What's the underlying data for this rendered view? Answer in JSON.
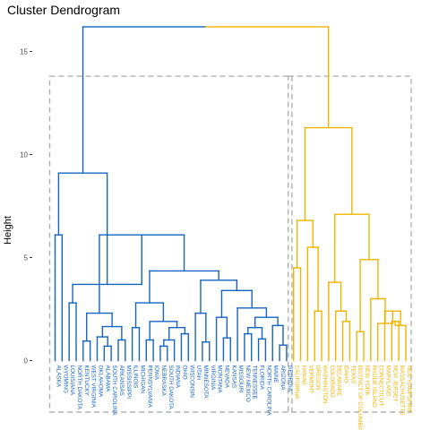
{
  "chart_data": {
    "type": "dendrogram",
    "title": "Cluster Dendrogram",
    "xlabel": "",
    "ylabel": "Height",
    "ylim": [
      -2.5,
      17.5
    ],
    "yticks": [
      0,
      5,
      10,
      15
    ],
    "grid": false,
    "legend": "none",
    "colors": {
      "cluster_1": "#1565C0",
      "cluster_2": "#F0B400",
      "box": "#B0B0B0",
      "axis_text": "#4d4d4d"
    },
    "leaves": [
      {
        "label": "ALASKA",
        "cluster": 1
      },
      {
        "label": "WYOMING",
        "cluster": 1
      },
      {
        "label": "LOUISIANA",
        "cluster": 1
      },
      {
        "label": "NORTH DAKOTA",
        "cluster": 1
      },
      {
        "label": "KENTUCKY",
        "cluster": 1
      },
      {
        "label": "WEST VIRGINIA",
        "cluster": 1
      },
      {
        "label": "OKLAHOMA",
        "cluster": 1
      },
      {
        "label": "ALABAMA",
        "cluster": 1
      },
      {
        "label": "SOUTH CAROLINA",
        "cluster": 1
      },
      {
        "label": "ARKANSAS",
        "cluster": 1
      },
      {
        "label": "MISSISSIPPI",
        "cluster": 1
      },
      {
        "label": "ILLINOIS",
        "cluster": 1
      },
      {
        "label": "MICHIGAN",
        "cluster": 1
      },
      {
        "label": "PENNSYLVANIA",
        "cluster": 1
      },
      {
        "label": "IOWA",
        "cluster": 1
      },
      {
        "label": "NEBRASKA",
        "cluster": 1
      },
      {
        "label": "SOUTH DAKOTA",
        "cluster": 1
      },
      {
        "label": "INDIANA",
        "cluster": 1
      },
      {
        "label": "OHIO",
        "cluster": 1
      },
      {
        "label": "WISCONSIN",
        "cluster": 1
      },
      {
        "label": "UTAH",
        "cluster": 1
      },
      {
        "label": "MINNESOTA",
        "cluster": 1
      },
      {
        "label": "VIRGINIA",
        "cluster": 1
      },
      {
        "label": "MONTANA",
        "cluster": 1
      },
      {
        "label": "NEVADA",
        "cluster": 1
      },
      {
        "label": "KANSAS",
        "cluster": 1
      },
      {
        "label": "MISSOURI",
        "cluster": 1
      },
      {
        "label": "NEW MEXICO",
        "cluster": 1
      },
      {
        "label": "TENNESSEE",
        "cluster": 1
      },
      {
        "label": "FLORIDA",
        "cluster": 1
      },
      {
        "label": "NORTH CAROLINA",
        "cluster": 1
      },
      {
        "label": "MAINE",
        "cluster": 1
      },
      {
        "label": "ARIZONA",
        "cluster": 1
      },
      {
        "label": "GEORGIA",
        "cluster": 1
      },
      {
        "label": "CALIFORNIA",
        "cluster": 2
      },
      {
        "label": "HAWAII",
        "cluster": 2
      },
      {
        "label": "VERMONT",
        "cluster": 2
      },
      {
        "label": "OREGON",
        "cluster": 2
      },
      {
        "label": "WASHINGTON",
        "cluster": 2
      },
      {
        "label": "COLORADO",
        "cluster": 2
      },
      {
        "label": "DELAWARE",
        "cluster": 2
      },
      {
        "label": "IDAHO",
        "cluster": 2
      },
      {
        "label": "TEXAS",
        "cluster": 2
      },
      {
        "label": "DISTRICT OF COLUMBIA",
        "cluster": 2
      },
      {
        "label": "NEW YORK",
        "cluster": 2
      },
      {
        "label": "RHODE ISLAND",
        "cluster": 2
      },
      {
        "label": "CONNECTICUT",
        "cluster": 2
      },
      {
        "label": "MARYLAND",
        "cluster": 2
      },
      {
        "label": "NEW JERSEY",
        "cluster": 2
      },
      {
        "label": "MASSACHUSETTS",
        "cluster": 2
      },
      {
        "label": "NEW HAMPSHIRE",
        "cluster": 2
      }
    ],
    "merges": [
      {
        "left": "ALASKA",
        "right": "WYOMING",
        "height": 6.1
      },
      {
        "left": "LOUISIANA",
        "right": "NORTH DAKOTA",
        "height": 2.8
      },
      {
        "left": "KENTUCKY",
        "right": "WEST VIRGINIA",
        "height": 0.95
      },
      {
        "left": "ALABAMA",
        "right": "SOUTH CAROLINA",
        "height": 0.7
      },
      {
        "left": "ARKANSAS",
        "right": "MISSISSIPPI",
        "height": 1.0
      },
      {
        "left": "OKLAHOMA",
        "right": "ALABAMA-SOUTH CAROLINA",
        "height": 1.15
      },
      {
        "left": "OKLAHOMA group",
        "right": "ARKANSAS-MISSISSIPPI",
        "height": 1.65
      },
      {
        "left": "KENTUCKY-WEST VIRGINIA",
        "right": "OKLAHOMA group",
        "height": 2.3
      },
      {
        "left": "ILLINOIS",
        "right": "MICHIGAN",
        "height": 1.6
      },
      {
        "left": "PENNSYLVANIA",
        "right": "IOWA",
        "height": 1.0
      },
      {
        "left": "NEBRASKA",
        "right": "SOUTH DAKOTA",
        "height": 0.7
      },
      {
        "left": "NEBRASKA-SOUTH DAKOTA",
        "right": "INDIANA",
        "height": 1.0
      },
      {
        "left": "OHIO",
        "right": "WISCONSIN",
        "height": 1.3
      },
      {
        "left": "NEBRASKA group",
        "right": "OHIO-WISCONSIN",
        "height": 1.6
      },
      {
        "left": "PENNSYLVANIA-IOWA",
        "right": "NEBRASKA group",
        "height": 1.9
      },
      {
        "left": "ILLINOIS-MICHIGAN",
        "right": "PENNSYLVANIA group",
        "height": 2.8
      },
      {
        "left": "MINNESOTA",
        "right": "VIRGINIA",
        "height": 0.9
      },
      {
        "left": "UTAH",
        "right": "MINNESOTA-VIRGINIA",
        "height": 2.3
      },
      {
        "left": "NEVADA",
        "right": "KANSAS",
        "height": 1.1
      },
      {
        "left": "MONTANA",
        "right": "NEVADA-KANSAS",
        "height": 2.1
      },
      {
        "left": "NEW MEXICO",
        "right": "TENNESSEE",
        "height": 1.3
      },
      {
        "left": "FLORIDA",
        "right": "NORTH CAROLINA",
        "height": 1.05
      },
      {
        "left": "NEW MEXICO-TENNESSEE",
        "right": "FLORIDA-NORTH CAROLINA",
        "height": 1.6
      },
      {
        "left": "ARIZONA",
        "right": "GEORGIA",
        "height": 0.75
      },
      {
        "left": "MAINE",
        "right": "ARIZONA-GEORGIA",
        "height": 1.7
      },
      {
        "left": "NEW MEXICO group",
        "right": "MAINE group",
        "height": 2.1
      },
      {
        "left": "MISSOURI",
        "right": "NEW MEXICO group",
        "height": 2.55
      },
      {
        "left": "MONTANA group",
        "right": "MISSOURI group",
        "height": 3.4
      },
      {
        "left": "UTAH group",
        "right": "MONTANA group",
        "height": 3.9
      },
      {
        "left": "ILLINOIS group",
        "right": "UTAH group",
        "height": 4.35
      },
      {
        "left": "KENTUCKY group",
        "right": "ILLINOIS group",
        "height": 6.1
      },
      {
        "left": "LOUISIANA-NORTH DAKOTA",
        "right": "KENTUCKY group",
        "height": 3.7
      },
      {
        "left": "ALASKA-WYOMING",
        "right": "LOUISIANA group",
        "height": 9.1
      },
      {
        "left": "CALIFORNIA",
        "right": "HAWAII",
        "height": 4.5
      },
      {
        "left": "OREGON",
        "right": "WASHINGTON",
        "height": 2.4
      },
      {
        "left": "VERMONT",
        "right": "OREGON-WASHINGTON",
        "height": 5.5
      },
      {
        "left": "CALIFORNIA-HAWAII",
        "right": "VERMONT group",
        "height": 6.8
      },
      {
        "left": "IDAHO",
        "right": "TEXAS",
        "height": 1.9
      },
      {
        "left": "DELAWARE",
        "right": "IDAHO-TEXAS",
        "height": 2.4
      },
      {
        "left": "COLORADO",
        "right": "DELAWARE group",
        "height": 3.8
      },
      {
        "left": "DISTRICT OF COLUMBIA",
        "right": "NEW YORK",
        "height": 1.4
      },
      {
        "left": "NEW JERSEY",
        "right": "MASSACHUSETTS",
        "height": 1.9
      },
      {
        "left": "NEW JERSEY-MASSACHUSETTS",
        "right": "NEW HAMPSHIRE",
        "height": 1.7
      },
      {
        "left": "MARYLAND",
        "right": "NEW JERSEY group",
        "height": 2.4
      },
      {
        "left": "CONNECTICUT",
        "right": "MARYLAND group",
        "height": 1.8
      },
      {
        "left": "RHODE ISLAND",
        "right": "CONNECTICUT group",
        "height": 3.0
      },
      {
        "left": "DISTRICT OF COLUMBIA-NEW YORK",
        "right": "RHODE ISLAND group",
        "height": 4.9
      },
      {
        "left": "COLORADO group",
        "right": "DISTRICT OF COLUMBIA group",
        "height": 7.1
      },
      {
        "left": "CALIFORNIA group",
        "right": "COLORADO group",
        "height": 11.3
      },
      {
        "left": "cluster 1",
        "right": "cluster 2",
        "height": 16.2
      }
    ],
    "cluster_boxes": [
      {
        "cluster": 1,
        "first": "ALASKA",
        "last": "GEORGIA",
        "top": 13.8,
        "bottom": -2.5
      },
      {
        "cluster": 2,
        "first": "CALIFORNIA",
        "last": "NEW HAMPSHIRE",
        "top": 13.8,
        "bottom": -2.5
      }
    ]
  }
}
